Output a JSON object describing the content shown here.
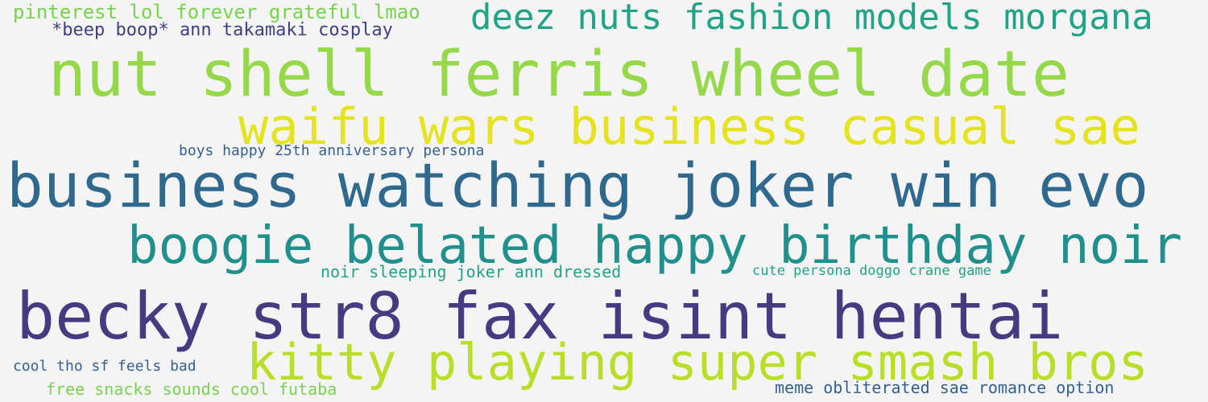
{
  "colors": {
    "background": "#f4f4f4",
    "dark_purple": "#453b81",
    "purple": "#413f83",
    "blue": "#2f6a8e",
    "blue_alt": "#355f8d",
    "teal": "#21908d",
    "green_teal": "#20a386",
    "green": "#95d84a",
    "green_alt": "#7ad151",
    "lime": "#b8de29",
    "yellow": "#e5e21e"
  },
  "phrases": [
    {
      "text": "pinterest lol forever grateful lmao",
      "color": "#7ad151"
    },
    {
      "text": "deez nuts fashion models morgana",
      "color": "#20a386"
    },
    {
      "text": "*beep boop* ann takamaki cosplay",
      "color": "#413f83"
    },
    {
      "text": "nut shell ferris wheel date",
      "color": "#95d84a"
    },
    {
      "text": "waifu wars business casual sae",
      "color": "#e5e21e"
    },
    {
      "text": "boys happy 25th anniversary persona",
      "color": "#355f8d"
    },
    {
      "text": "business watching joker win evo",
      "color": "#2f6a8e"
    },
    {
      "text": "boogie belated happy birthday noir",
      "color": "#21908d"
    },
    {
      "text": "noir sleeping joker ann dressed",
      "color": "#20a386"
    },
    {
      "text": "cute persona doggo crane game",
      "color": "#20a386"
    },
    {
      "text": "becky str8 fax isint hentai",
      "color": "#453b81"
    },
    {
      "text": "kitty playing super smash bros",
      "color": "#b8de29"
    },
    {
      "text": "cool tho sf feels bad",
      "color": "#355f8d"
    },
    {
      "text": "free snacks sounds cool futaba",
      "color": "#7ad151"
    },
    {
      "text": "meme obliterated sae romance option",
      "color": "#355f8d"
    }
  ]
}
